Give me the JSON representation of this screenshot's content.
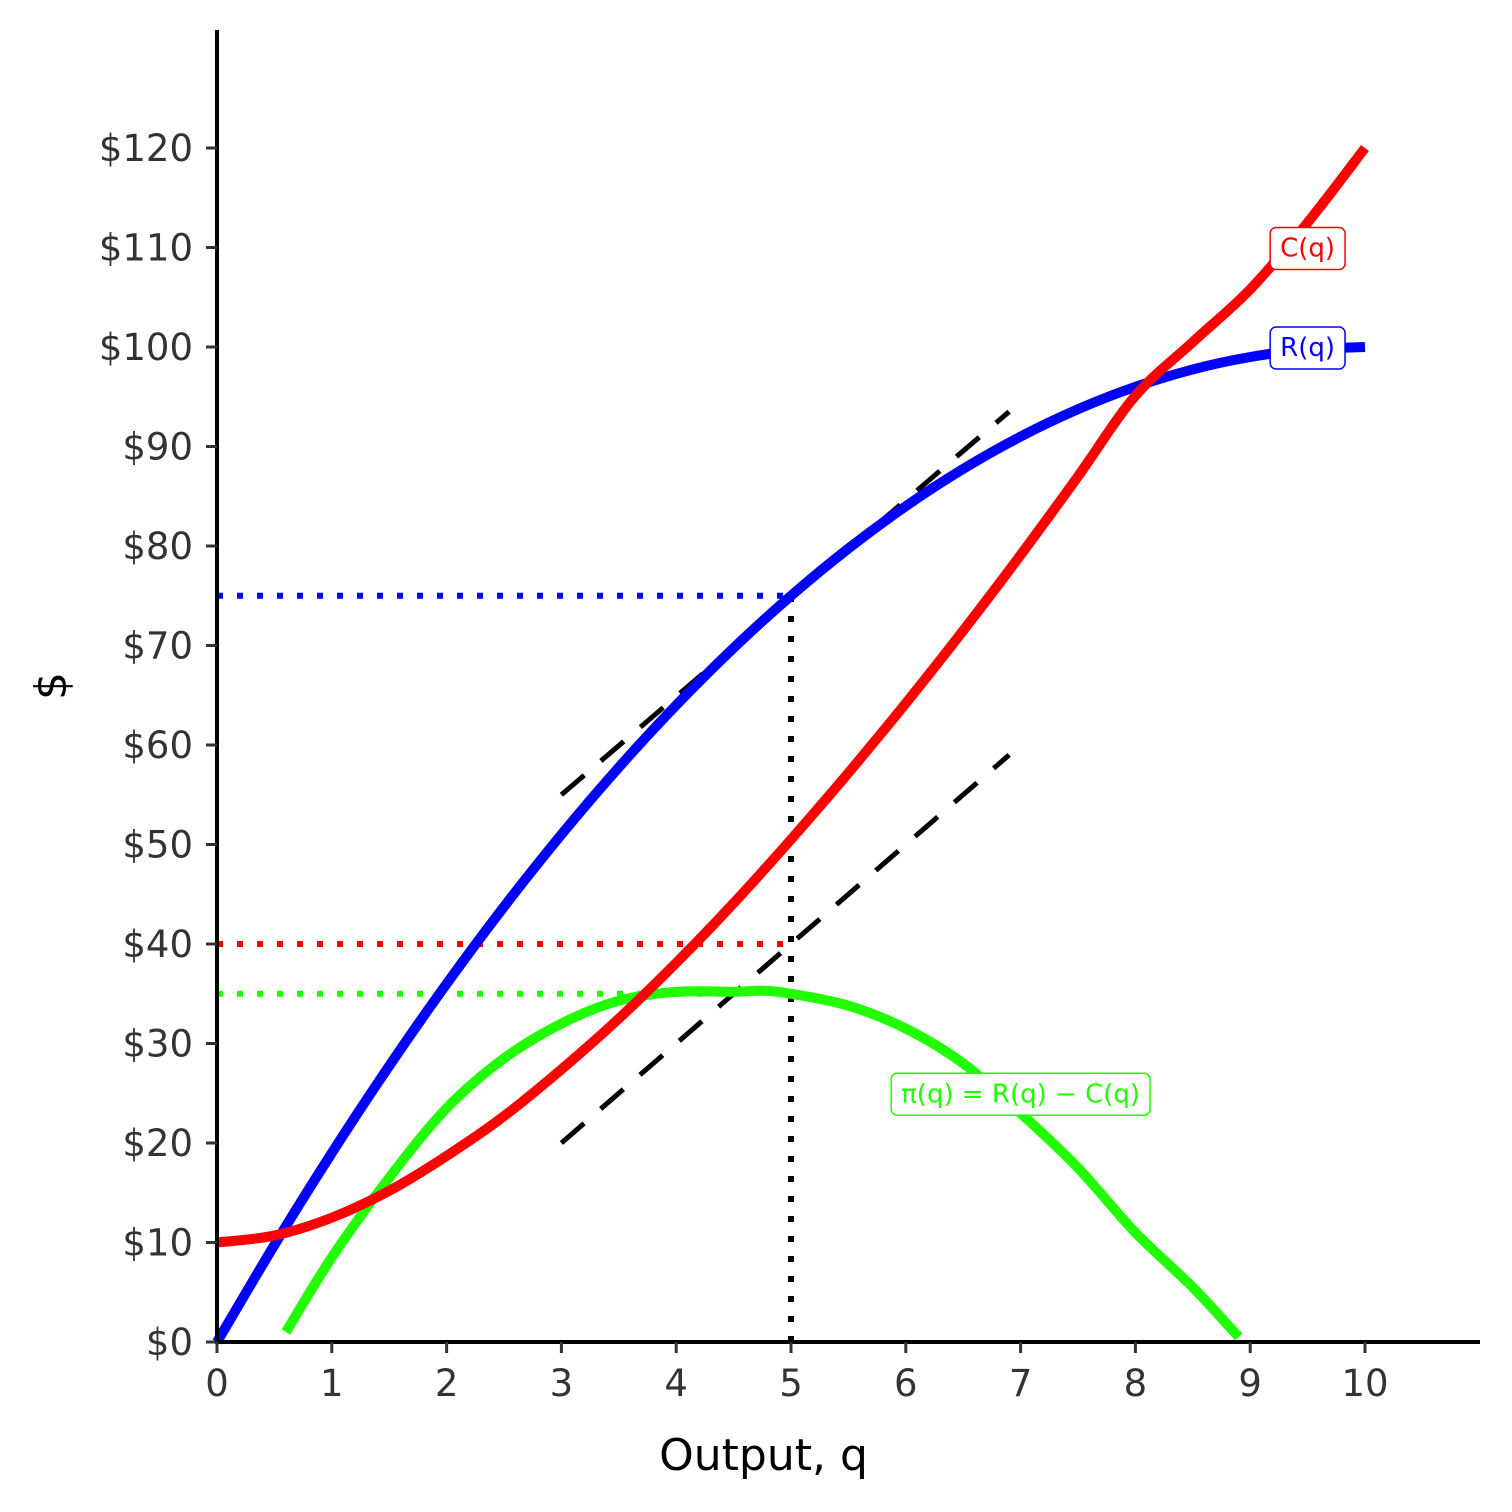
{
  "chart_data": {
    "type": "line",
    "xlabel": "Output, q",
    "ylabel": "$",
    "xlim": [
      0,
      11
    ],
    "ylim": [
      0,
      131
    ],
    "x_ticks": [
      0,
      1,
      2,
      3,
      4,
      5,
      6,
      7,
      8,
      9,
      10
    ],
    "x_tick_labels": [
      "0",
      "1",
      "2",
      "3",
      "4",
      "5",
      "6",
      "7",
      "8",
      "9",
      "10"
    ],
    "y_ticks": [
      0,
      10,
      20,
      30,
      40,
      50,
      60,
      70,
      80,
      90,
      100,
      110,
      120
    ],
    "y_tick_labels": [
      "$0",
      "$10",
      "$20",
      "$30",
      "$40",
      "$50",
      "$60",
      "$70",
      "$80",
      "$90",
      "$100",
      "$110",
      "$120"
    ],
    "grid": false,
    "series": [
      {
        "name": "R(q)",
        "label": "R(q)",
        "color": "#0000ff",
        "x": [
          0,
          0.5,
          1,
          1.5,
          2,
          2.5,
          3,
          3.5,
          4,
          4.5,
          5,
          5.5,
          6,
          6.5,
          7,
          7.5,
          8,
          8.5,
          9,
          9.5,
          10
        ],
        "y": [
          0,
          9.75,
          19,
          27.75,
          36,
          43.75,
          51,
          57.75,
          64,
          69.75,
          75,
          79.75,
          84,
          87.75,
          91,
          93.75,
          96,
          97.75,
          99,
          99.75,
          100
        ]
      },
      {
        "name": "C(q)",
        "label": "C(q)",
        "color": "#ff0000",
        "x": [
          0,
          0.5,
          1,
          1.5,
          2,
          2.5,
          3,
          3.5,
          4,
          4.5,
          5,
          5.5,
          6,
          6.5,
          7,
          7.5,
          8,
          8.5,
          9,
          9.5,
          10
        ],
        "y": [
          10,
          10.7,
          12.5,
          15.2,
          18.7,
          22.7,
          27.4,
          32.5,
          38.1,
          44.1,
          50.5,
          57.2,
          64.2,
          71.5,
          79.1,
          87,
          95.1,
          100.5,
          105.8,
          112.5,
          120
        ]
      },
      {
        "name": "π(q) = R(q) − C(q)",
        "label": "π(q) = R(q) − C(q)",
        "color": "#22ff00",
        "x": [
          0.6,
          1,
          1.5,
          2,
          2.5,
          3,
          3.5,
          4,
          4.5,
          4.75,
          5,
          5.5,
          6,
          6.5,
          7,
          7.5,
          8,
          8.5,
          8.9
        ],
        "y": [
          1,
          8.5,
          16.5,
          23.5,
          28.5,
          32,
          34.3,
          35.2,
          35.2,
          35.3,
          35,
          33.8,
          31.5,
          28,
          23,
          17.5,
          11,
          5.5,
          0.5
        ]
      }
    ],
    "tangent_lines": [
      {
        "x": [
          3,
          6.9
        ],
        "y": [
          55,
          93.5
        ],
        "color": "#000000",
        "style": "dashed"
      },
      {
        "x": [
          3,
          6.9
        ],
        "y": [
          20,
          59
        ],
        "color": "#000000",
        "style": "dashed"
      }
    ],
    "reference_lines": [
      {
        "x": [
          0,
          5
        ],
        "y": [
          75,
          75
        ],
        "color": "#0000ff",
        "style": "dotted"
      },
      {
        "x": [
          0,
          5
        ],
        "y": [
          40,
          40
        ],
        "color": "#ff0000",
        "style": "dotted"
      },
      {
        "x": [
          0,
          4.5
        ],
        "y": [
          35,
          35
        ],
        "color": "#22ff00",
        "style": "dotted"
      },
      {
        "x": [
          5,
          5
        ],
        "y": [
          0,
          75
        ],
        "color": "#000000",
        "style": "dotted"
      }
    ],
    "annotations": [
      {
        "text": "C(q)",
        "x": 9.5,
        "y": 110,
        "color": "#ff0000"
      },
      {
        "text": "R(q)",
        "x": 9.5,
        "y": 100,
        "color": "#0000ff"
      },
      {
        "text": "π(q) = R(q) − C(q)",
        "x": 7,
        "y": 25,
        "color": "#22ff00"
      }
    ]
  }
}
